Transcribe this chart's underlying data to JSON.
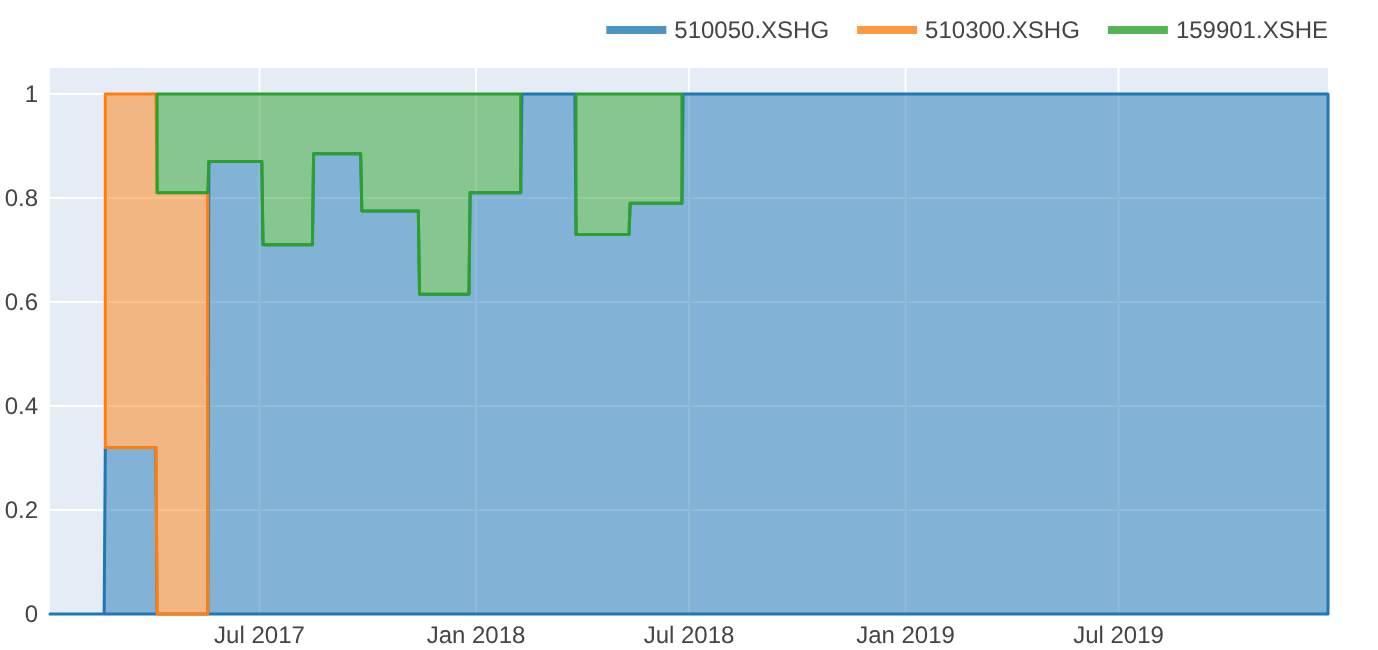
{
  "chart_data": {
    "type": "area",
    "stacked": true,
    "x": [
      "2017-01-04",
      "2017-02-19",
      "2017-02-20",
      "2017-04-04",
      "2017-04-05",
      "2017-05-18",
      "2017-05-19",
      "2017-07-03",
      "2017-07-04",
      "2017-08-15",
      "2017-08-16",
      "2017-09-25",
      "2017-09-26",
      "2017-11-13",
      "2017-11-14",
      "2017-12-26",
      "2017-12-27",
      "2018-02-08",
      "2018-02-09",
      "2018-03-26",
      "2018-03-27",
      "2018-05-11",
      "2018-05-12",
      "2018-06-25",
      "2018-06-26",
      "2019-12-26"
    ],
    "series": [
      {
        "name": "510050.XSHG",
        "color": "#1f77b4",
        "values": [
          0,
          0,
          0.32,
          0.32,
          0,
          0,
          0.87,
          0.87,
          0.71,
          0.71,
          0.885,
          0.885,
          0.775,
          0.775,
          0.615,
          0.615,
          0.81,
          0.81,
          1,
          1,
          0.73,
          0.73,
          0.79,
          0.79,
          1,
          1
        ]
      },
      {
        "name": "510300.XSHG",
        "color": "#ff7f0e",
        "values": [
          null,
          null,
          0.68,
          0.68,
          0.81,
          0.81,
          null,
          null,
          null,
          null,
          null,
          null,
          null,
          null,
          null,
          null,
          null,
          null,
          null,
          null,
          null,
          null,
          null,
          null,
          null,
          null
        ]
      },
      {
        "name": "159901.XSHE",
        "color": "#2ca02c",
        "values": [
          null,
          null,
          null,
          null,
          0.19,
          0.19,
          0.13,
          0.13,
          0.29,
          0.29,
          0.115,
          0.115,
          0.225,
          0.225,
          0.385,
          0.385,
          0.19,
          0.19,
          null,
          null,
          0.27,
          0.27,
          0.21,
          0.21,
          null,
          null
        ]
      }
    ],
    "xlim": [
      "2017-01-04",
      "2019-12-26"
    ],
    "xticks": [
      {
        "value": "2017-07-01",
        "label": "Jul 2017"
      },
      {
        "value": "2018-01-01",
        "label": "Jan 2018"
      },
      {
        "value": "2018-07-01",
        "label": "Jul 2018"
      },
      {
        "value": "2019-01-01",
        "label": "Jan 2019"
      },
      {
        "value": "2019-07-01",
        "label": "Jul 2019"
      }
    ],
    "ylim": [
      0,
      1.05
    ],
    "yticks": [
      0,
      0.2,
      0.4,
      0.6,
      0.8,
      1
    ],
    "grid": true,
    "legend": "top right",
    "line_style": "solid"
  }
}
